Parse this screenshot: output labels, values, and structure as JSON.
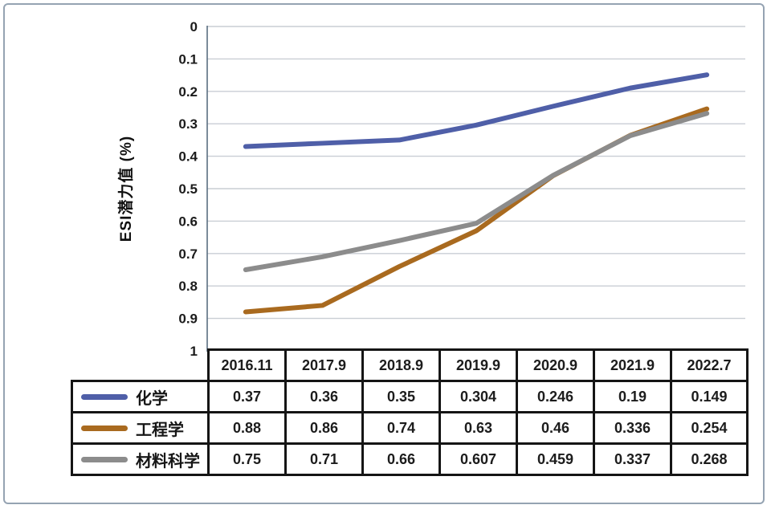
{
  "chart_data": {
    "type": "line",
    "title": "",
    "ylabel": "ESI潜力值 (%)",
    "xlabel": "",
    "categories": [
      "2016.11",
      "2017.9",
      "2018.9",
      "2019.9",
      "2020.9",
      "2021.9",
      "2022.7"
    ],
    "series": [
      {
        "name": "化学",
        "color": "#4f5fa8",
        "values": [
          0.37,
          0.36,
          0.35,
          0.304,
          0.246,
          0.19,
          0.149
        ]
      },
      {
        "name": "工程学",
        "color": "#a96a1f",
        "values": [
          0.88,
          0.86,
          0.74,
          0.63,
          0.46,
          0.336,
          0.254
        ]
      },
      {
        "name": "材料科学",
        "color": "#8c8c8c",
        "values": [
          0.75,
          0.71,
          0.66,
          0.607,
          0.459,
          0.337,
          0.268
        ]
      }
    ],
    "y_axis": {
      "min": 0,
      "max": 1,
      "step": 0.1,
      "inverted_display": "0 at top, 1 at bottom",
      "tick_labels": [
        "0",
        "0.1",
        "0.2",
        "0.3",
        "0.4",
        "0.5",
        "0.6",
        "0.7",
        "0.8",
        "0.9",
        "1"
      ]
    },
    "grid": true,
    "legend_position": "table-left"
  },
  "colors": {
    "gridline": "#c9ced4",
    "axis_line": "#5a6e80",
    "table_border": "#151515",
    "frame_border": "#95a3b2",
    "text": "#1b1b1b",
    "background": "#ffffff"
  }
}
